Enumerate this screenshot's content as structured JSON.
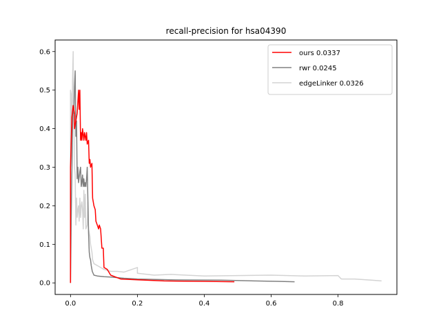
{
  "chart_data": {
    "type": "line",
    "title": "recall-precision for hsa04390",
    "xlabel": "",
    "ylabel": "",
    "xlim": [
      -0.046,
      0.976
    ],
    "ylim": [
      -0.03,
      0.63
    ],
    "xticks": [
      0.0,
      0.2,
      0.4,
      0.6,
      0.8
    ],
    "xtick_labels": [
      "0.0",
      "0.2",
      "0.4",
      "0.6",
      "0.8"
    ],
    "yticks": [
      0.0,
      0.1,
      0.2,
      0.3,
      0.4,
      0.5,
      0.6
    ],
    "ytick_labels": [
      "0.0",
      "0.1",
      "0.2",
      "0.3",
      "0.4",
      "0.5",
      "0.6"
    ],
    "grid": false,
    "legend_position": "top-right",
    "series": [
      {
        "name": "ours 0.0337",
        "color": "#ff0000",
        "x": [
          0.0,
          0.0,
          0.004,
          0.008,
          0.012,
          0.012,
          0.016,
          0.02,
          0.022,
          0.024,
          0.026,
          0.028,
          0.03,
          0.032,
          0.034,
          0.036,
          0.04,
          0.042,
          0.046,
          0.048,
          0.05,
          0.054,
          0.056,
          0.058,
          0.06,
          0.064,
          0.066,
          0.07,
          0.074,
          0.076,
          0.08,
          0.084,
          0.086,
          0.09,
          0.094,
          0.098,
          0.1,
          0.11,
          0.12,
          0.15,
          0.2,
          0.28,
          0.4,
          0.49
        ],
        "y": [
          0.0,
          0.3,
          0.43,
          0.46,
          0.44,
          0.4,
          0.42,
          0.44,
          0.47,
          0.5,
          0.45,
          0.5,
          0.37,
          0.39,
          0.37,
          0.4,
          0.37,
          0.39,
          0.37,
          0.39,
          0.36,
          0.37,
          0.31,
          0.32,
          0.3,
          0.31,
          0.22,
          0.2,
          0.19,
          0.16,
          0.15,
          0.14,
          0.15,
          0.14,
          0.09,
          0.09,
          0.04,
          0.035,
          0.02,
          0.01,
          0.008,
          0.005,
          0.004,
          0.003
        ]
      },
      {
        "name": "rwr 0.0245",
        "color": "#808080",
        "x": [
          0.0,
          0.002,
          0.006,
          0.008,
          0.01,
          0.012,
          0.014,
          0.016,
          0.018,
          0.02,
          0.022,
          0.024,
          0.028,
          0.03,
          0.032,
          0.034,
          0.036,
          0.038,
          0.04,
          0.042,
          0.044,
          0.046,
          0.048,
          0.05,
          0.054,
          0.056,
          0.058,
          0.06,
          0.062,
          0.065,
          0.07,
          0.08,
          0.1,
          0.12,
          0.16,
          0.2,
          0.3,
          0.45,
          0.55,
          0.62,
          0.67
        ],
        "y": [
          0.0,
          0.16,
          0.4,
          0.45,
          0.44,
          0.51,
          0.55,
          0.38,
          0.42,
          0.27,
          0.3,
          0.26,
          0.29,
          0.3,
          0.25,
          0.26,
          0.28,
          0.25,
          0.27,
          0.25,
          0.26,
          0.25,
          0.27,
          0.3,
          0.13,
          0.08,
          0.065,
          0.06,
          0.045,
          0.03,
          0.02,
          0.018,
          0.016,
          0.015,
          0.012,
          0.01,
          0.008,
          0.007,
          0.005,
          0.004,
          0.003
        ]
      },
      {
        "name": "edgeLinker 0.0326",
        "color": "#d3d3d3",
        "x": [
          0.0,
          0.0,
          0.002,
          0.004,
          0.006,
          0.008,
          0.008,
          0.01,
          0.012,
          0.014,
          0.016,
          0.018,
          0.02,
          0.022,
          0.024,
          0.026,
          0.028,
          0.03,
          0.032,
          0.034,
          0.036,
          0.038,
          0.04,
          0.042,
          0.044,
          0.046,
          0.05,
          0.052,
          0.054,
          0.058,
          0.06,
          0.064,
          0.066,
          0.07,
          0.08,
          0.09,
          0.1,
          0.12,
          0.14,
          0.16,
          0.2,
          0.2,
          0.25,
          0.3,
          0.4,
          0.5,
          0.6,
          0.7,
          0.8,
          0.81,
          0.85,
          0.9,
          0.93
        ],
        "y": [
          0.0,
          0.5,
          0.49,
          0.3,
          0.52,
          0.6,
          0.48,
          0.45,
          0.3,
          0.28,
          0.15,
          0.22,
          0.17,
          0.19,
          0.2,
          0.16,
          0.22,
          0.17,
          0.2,
          0.21,
          0.19,
          0.14,
          0.24,
          0.17,
          0.23,
          0.14,
          0.15,
          0.21,
          0.14,
          0.12,
          0.1,
          0.08,
          0.06,
          0.05,
          0.045,
          0.04,
          0.035,
          0.03,
          0.03,
          0.028,
          0.04,
          0.025,
          0.02,
          0.022,
          0.018,
          0.019,
          0.02,
          0.018,
          0.019,
          0.01,
          0.01,
          0.007,
          0.005
        ]
      }
    ]
  }
}
